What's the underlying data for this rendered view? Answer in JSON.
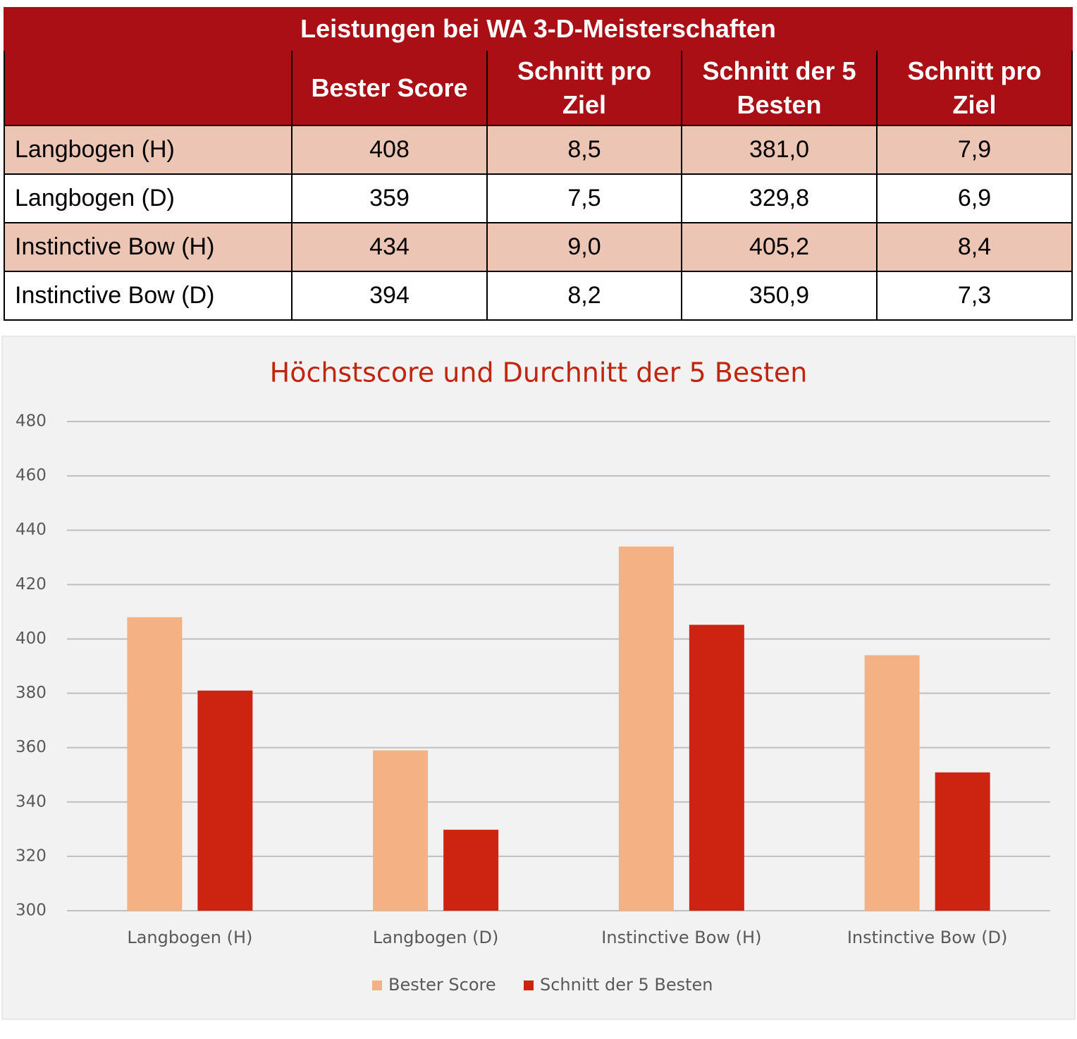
{
  "table": {
    "title": "Leistungen bei WA 3-D-Meisterschaften",
    "header": [
      "Bester Score",
      "Schnitt pro Ziel",
      "Schnitt der 5 Besten",
      "Schnitt pro Ziel"
    ],
    "rows": [
      [
        "Langbogen (H)",
        "408",
        "8,5",
        "381,0",
        "7,9"
      ],
      [
        "Langbogen (D)",
        "359",
        "7,5",
        "329,8",
        "6,9"
      ],
      [
        "Instinctive Bow (H)",
        "434",
        "9,0",
        "405,2",
        "8,4"
      ],
      [
        "Instinctive Bow (D)",
        "394",
        "8,2",
        "350,9",
        "7,3"
      ]
    ]
  },
  "chart_data": {
    "type": "bar",
    "title": "Höchstscore und Durchnitt der  5 Besten",
    "categories": [
      "Langbogen (H)",
      "Langbogen (D)",
      "Instinctive Bow (H)",
      "Instinctive Bow (D)"
    ],
    "series": [
      {
        "name": "Bester Score",
        "color": "#f4b183",
        "values": [
          408,
          359,
          434,
          394
        ]
      },
      {
        "name": "Schnitt der 5 Besten",
        "color": "#cc2410",
        "values": [
          381.0,
          329.8,
          405.2,
          350.9
        ]
      }
    ],
    "ylim": [
      300,
      480
    ],
    "yticks": [
      300,
      320,
      340,
      360,
      380,
      400,
      420,
      440,
      460,
      480
    ],
    "grid": true,
    "legend": "bottom"
  }
}
